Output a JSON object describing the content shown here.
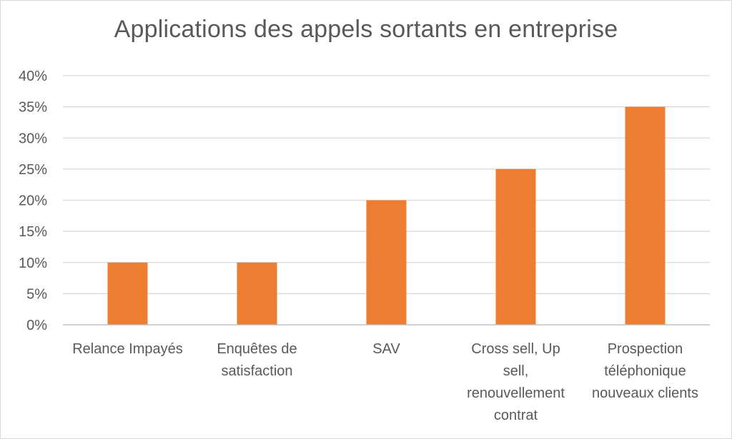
{
  "chart_data": {
    "type": "bar",
    "title": "Applications des appels sortants en entreprise",
    "categories": [
      [
        "Relance Impayés"
      ],
      [
        "Enquêtes de",
        "satisfaction"
      ],
      [
        "SAV"
      ],
      [
        "Cross sell, Up",
        "sell,",
        "renouvellement",
        "contrat"
      ],
      [
        "Prospection",
        "téléphonique",
        "nouveaux clients"
      ]
    ],
    "values": [
      10,
      10,
      20,
      25,
      35
    ],
    "ylim": [
      0,
      40
    ],
    "yticks": [
      0,
      5,
      10,
      15,
      20,
      25,
      30,
      35,
      40
    ],
    "ytick_suffix": "%",
    "grid": true,
    "legend": "none",
    "colors": {
      "bar": "#ed7d31",
      "grid": "#d9d9d9",
      "axis": "#bfbfbf",
      "text": "#595959"
    }
  }
}
